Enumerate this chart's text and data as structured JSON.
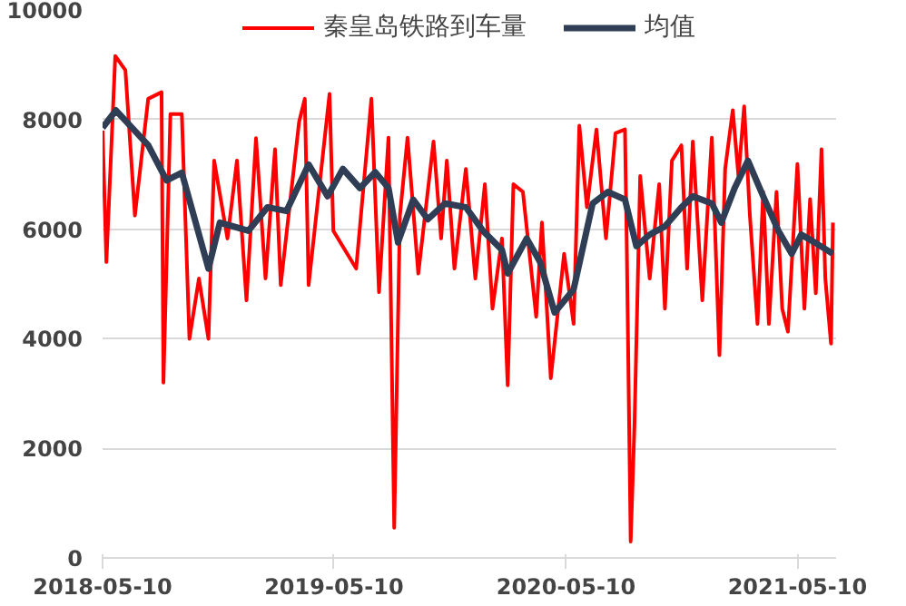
{
  "chart_data": {
    "type": "line",
    "series": [
      {
        "name": "秦皇岛铁路到车量",
        "color": "#ff0000",
        "x": [
          "2018-05-10",
          "2018-05-16",
          "2018-05-30",
          "2018-06-15",
          "2018-06-30",
          "2018-07-21",
          "2018-08-11",
          "2018-08-14",
          "2018-08-25",
          "2018-09-12",
          "2018-09-24",
          "2018-10-09",
          "2018-10-24",
          "2018-11-02",
          "2018-11-23",
          "2018-12-08",
          "2018-12-23",
          "2019-01-07",
          "2019-01-22",
          "2019-02-06",
          "2019-02-15",
          "2019-03-16",
          "2019-03-25",
          "2019-03-31",
          "2019-05-03",
          "2019-05-09",
          "2019-06-14",
          "2019-07-08",
          "2019-07-20",
          "2019-08-04",
          "2019-08-13",
          "2019-08-22",
          "2019-09-03",
          "2019-09-20",
          "2019-10-14",
          "2019-10-26",
          "2019-11-04",
          "2019-11-16",
          "2019-12-04",
          "2019-12-19",
          "2020-01-03",
          "2020-01-15",
          "2020-01-30",
          "2020-02-08",
          "2020-02-17",
          "2020-03-03",
          "2020-03-24",
          "2020-04-02",
          "2020-04-16",
          "2020-05-07",
          "2020-05-22",
          "2020-05-31",
          "2020-06-12",
          "2020-06-27",
          "2020-07-12",
          "2020-07-27",
          "2020-08-11",
          "2020-08-14",
          "2020-08-20",
          "2020-08-26",
          "2020-09-04",
          "2020-09-19",
          "2020-10-04",
          "2020-10-13",
          "2020-10-24",
          "2020-11-08",
          "2020-11-17",
          "2020-11-26",
          "2020-12-11",
          "2020-12-26",
          "2021-01-07",
          "2021-01-16",
          "2021-01-28",
          "2021-02-06",
          "2021-02-15",
          "2021-02-24",
          "2021-03-08",
          "2021-03-17",
          "2021-03-26",
          "2021-04-07",
          "2021-04-16",
          "2021-04-25",
          "2021-05-10",
          "2021-05-21",
          "2021-05-30",
          "2021-06-08",
          "2021-06-17",
          "2021-06-23",
          "2021-07-02",
          "2021-07-05"
        ],
        "values": [
          7800,
          5400,
          9160,
          8900,
          6250,
          8380,
          8500,
          3200,
          8100,
          8100,
          4000,
          5100,
          4000,
          7250,
          5830,
          7250,
          4700,
          7660,
          5100,
          7460,
          4980,
          7960,
          8380,
          4980,
          8470,
          5970,
          5280,
          8380,
          4850,
          7670,
          550,
          6250,
          7670,
          5190,
          7600,
          5830,
          7250,
          5280,
          7100,
          5100,
          6820,
          4550,
          5830,
          3150,
          6820,
          6680,
          4400,
          6120,
          3280,
          5550,
          4270,
          7890,
          6400,
          7820,
          5830,
          7750,
          7820,
          5550,
          300,
          2430,
          6970,
          5100,
          6820,
          4550,
          7250,
          7530,
          5280,
          7600,
          4700,
          7670,
          3700,
          7100,
          8170,
          6970,
          8240,
          6250,
          4270,
          6680,
          4270,
          6680,
          4550,
          4130,
          7190,
          4550,
          6550,
          4830,
          7460,
          5100,
          3910,
          6120
        ]
      },
      {
        "name": "均值",
        "color": "#2f3e55",
        "x": [
          "2018-05-10",
          "2018-05-31",
          "2018-07-21",
          "2018-08-19",
          "2018-09-12",
          "2018-10-24",
          "2018-11-11",
          "2018-12-26",
          "2019-01-25",
          "2019-02-24",
          "2019-03-31",
          "2019-04-30",
          "2019-05-24",
          "2019-06-20",
          "2019-07-14",
          "2019-08-04",
          "2019-08-19",
          "2019-09-12",
          "2019-10-05",
          "2019-11-01",
          "2019-12-04",
          "2019-12-31",
          "2020-01-30",
          "2020-02-08",
          "2020-03-09",
          "2020-03-30",
          "2020-04-22",
          "2020-05-22",
          "2020-06-21",
          "2020-07-15",
          "2020-08-11",
          "2020-08-29",
          "2020-09-19",
          "2020-10-13",
          "2020-11-08",
          "2020-11-26",
          "2020-12-26",
          "2021-01-10",
          "2021-01-31",
          "2021-02-21",
          "2021-03-17",
          "2021-04-10",
          "2021-05-01",
          "2021-05-16",
          "2021-06-06",
          "2021-07-05"
        ],
        "values": [
          7850,
          8170,
          7530,
          6890,
          7030,
          5280,
          6120,
          5970,
          6400,
          6330,
          7180,
          6600,
          7100,
          6750,
          7040,
          6750,
          5760,
          6540,
          6180,
          6470,
          6400,
          5970,
          5620,
          5190,
          5830,
          5400,
          4480,
          4900,
          6470,
          6680,
          6540,
          5690,
          5900,
          6050,
          6400,
          6600,
          6470,
          6120,
          6750,
          7250,
          6600,
          5970,
          5550,
          5900,
          5760,
          5550
        ]
      }
    ],
    "xlim": [
      "2018-05-10",
      "2021-07-10"
    ],
    "xticks": [
      "2018-05-10",
      "2019-05-10",
      "2020-05-10",
      "2021-05-10"
    ],
    "ylim": [
      0,
      10000
    ],
    "yticks": [
      0,
      2000,
      4000,
      6000,
      8000,
      10000
    ],
    "grid": "y",
    "legend": "top",
    "marker": "none",
    "line_style": "solid"
  }
}
